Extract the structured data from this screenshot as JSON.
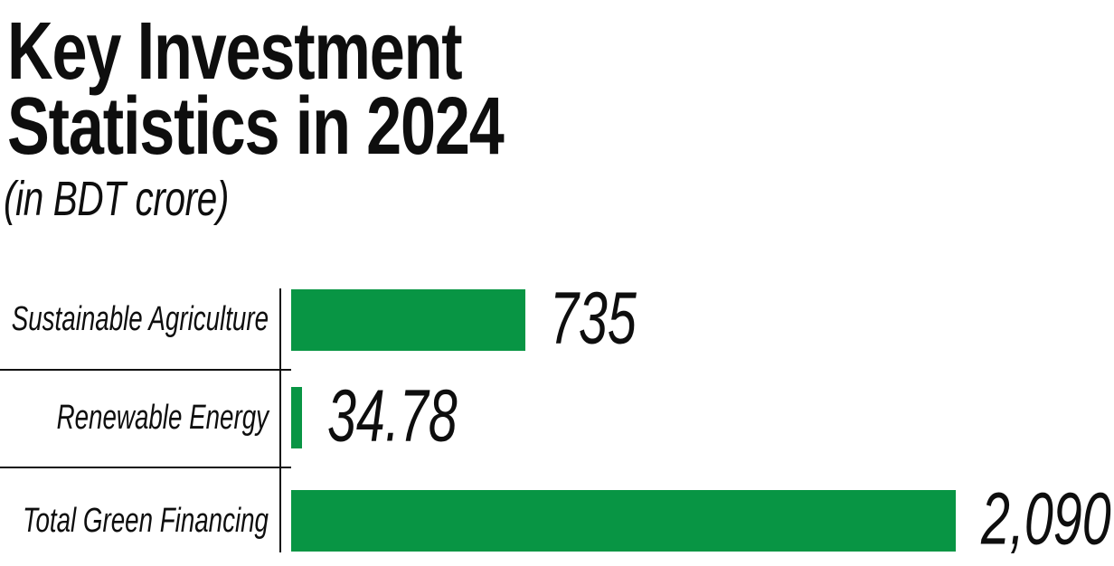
{
  "header": {
    "title_line1": "Key Investment",
    "title_line2": "Statistics in 2024",
    "subtitle": "(in BDT crore)"
  },
  "chart_data": {
    "type": "bar",
    "orientation": "horizontal",
    "title": "Key Investment Statistics in 2024",
    "subtitle": "(in BDT crore)",
    "unit": "BDT crore",
    "categories": [
      "Sustainable Agriculture",
      "Renewable Energy",
      "Total Green Financing"
    ],
    "values": [
      735,
      34.78,
      2090
    ],
    "value_labels": [
      "735",
      "34.78",
      "2,090"
    ],
    "xlabel": "",
    "ylabel": "",
    "xlim": [
      0,
      2090
    ],
    "grid": false,
    "legend": false,
    "bar_color": "#089544",
    "axis_color": "#111111",
    "text_color": "#0e0e0e",
    "background_color": "#ffffff"
  }
}
